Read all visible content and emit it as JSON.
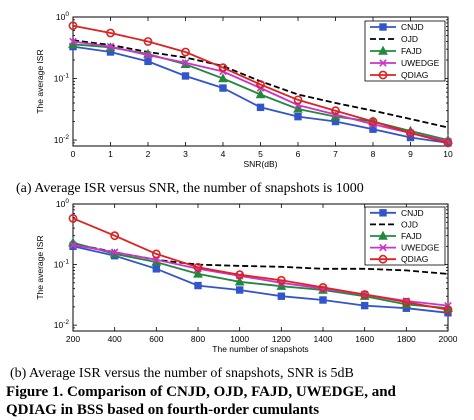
{
  "chart_data": [
    {
      "type": "line",
      "yscale": "log",
      "xlabel": "SNR(dB)",
      "ylabel": "The average ISR",
      "xlim": [
        0,
        10
      ],
      "ylim": [
        0.008,
        1
      ],
      "x_ticks": [
        "0",
        "1",
        "2",
        "3",
        "4",
        "5",
        "6",
        "7",
        "8",
        "9",
        "10"
      ],
      "y_ticks": [
        {
          "v": 0.01,
          "b": "10",
          "e": "-2"
        },
        {
          "v": 0.1,
          "b": "10",
          "e": "-1"
        },
        {
          "v": 1,
          "b": "10",
          "e": "0"
        }
      ],
      "legend_position": "top-right",
      "x": [
        0,
        1,
        2,
        3,
        4,
        5,
        6,
        7,
        8,
        9,
        10
      ],
      "series": [
        {
          "name": "CNJD",
          "color": "#3355cc",
          "marker": "square",
          "dash": "",
          "values": [
            0.33,
            0.27,
            0.19,
            0.11,
            0.07,
            0.034,
            0.024,
            0.02,
            0.015,
            0.011,
            0.009
          ]
        },
        {
          "name": "OJD",
          "color": "#000000",
          "marker": "none",
          "dash": "6,3",
          "values": [
            0.42,
            0.35,
            0.27,
            0.22,
            0.16,
            0.09,
            0.055,
            0.04,
            0.03,
            0.022,
            0.016
          ]
        },
        {
          "name": "FAJD",
          "color": "#22883c",
          "marker": "triangle",
          "dash": "",
          "values": [
            0.36,
            0.32,
            0.25,
            0.17,
            0.1,
            0.055,
            0.032,
            0.024,
            0.02,
            0.014,
            0.01
          ]
        },
        {
          "name": "UWEDGE",
          "color": "#cc33cc",
          "marker": "x",
          "dash": "",
          "values": [
            0.4,
            0.33,
            0.24,
            0.18,
            0.13,
            0.07,
            0.037,
            0.026,
            0.018,
            0.013,
            0.0095
          ]
        },
        {
          "name": "QDIAG",
          "color": "#dd2222",
          "marker": "circle",
          "dash": "",
          "values": [
            0.72,
            0.55,
            0.4,
            0.27,
            0.15,
            0.08,
            0.045,
            0.03,
            0.02,
            0.013,
            0.009
          ]
        }
      ]
    },
    {
      "type": "line",
      "yscale": "log",
      "xlabel": "The number of snapshots",
      "ylabel": "The average ISR",
      "xlim": [
        200,
        2000
      ],
      "ylim": [
        0.008,
        1
      ],
      "x_ticks": [
        "200",
        "400",
        "600",
        "800",
        "1000",
        "1200",
        "1400",
        "1600",
        "1800",
        "2000"
      ],
      "y_ticks": [
        {
          "v": 0.01,
          "b": "10",
          "e": "-2"
        },
        {
          "v": 0.1,
          "b": "10",
          "e": "-1"
        },
        {
          "v": 1,
          "b": "10",
          "e": "0"
        }
      ],
      "legend_position": "top-right",
      "x": [
        200,
        400,
        600,
        800,
        1000,
        1200,
        1400,
        1600,
        1800,
        2000
      ],
      "series": [
        {
          "name": "CNJD",
          "color": "#3355cc",
          "marker": "square",
          "dash": "",
          "values": [
            0.2,
            0.14,
            0.085,
            0.045,
            0.038,
            0.03,
            0.026,
            0.021,
            0.019,
            0.016
          ]
        },
        {
          "name": "OJD",
          "color": "#000000",
          "marker": "none",
          "dash": "6,3",
          "values": [
            0.22,
            0.16,
            0.12,
            0.1,
            0.095,
            0.092,
            0.085,
            0.085,
            0.08,
            0.07
          ]
        },
        {
          "name": "FAJD",
          "color": "#22883c",
          "marker": "triangle",
          "dash": "",
          "values": [
            0.23,
            0.15,
            0.11,
            0.07,
            0.052,
            0.044,
            0.038,
            0.03,
            0.022,
            0.019
          ]
        },
        {
          "name": "UWEDGE",
          "color": "#cc33cc",
          "marker": "x",
          "dash": "",
          "values": [
            0.21,
            0.16,
            0.12,
            0.085,
            0.065,
            0.05,
            0.04,
            0.032,
            0.025,
            0.021
          ]
        },
        {
          "name": "QDIAG",
          "color": "#dd2222",
          "marker": "circle",
          "dash": "",
          "values": [
            0.58,
            0.3,
            0.15,
            0.09,
            0.068,
            0.055,
            0.042,
            0.032,
            0.024,
            0.018
          ]
        }
      ]
    }
  ],
  "captions": {
    "a": "(a) Average ISR versus SNR, the number of snapshots is 1000",
    "b": "(b) Average ISR versus the number of snapshots, SNR is 5dB",
    "figure_line1": "Figure 1. Comparison of CNJD, OJD, FAJD, UWEDGE, and",
    "figure_line2": "QDIAG in BSS based on fourth-order cumulants"
  }
}
